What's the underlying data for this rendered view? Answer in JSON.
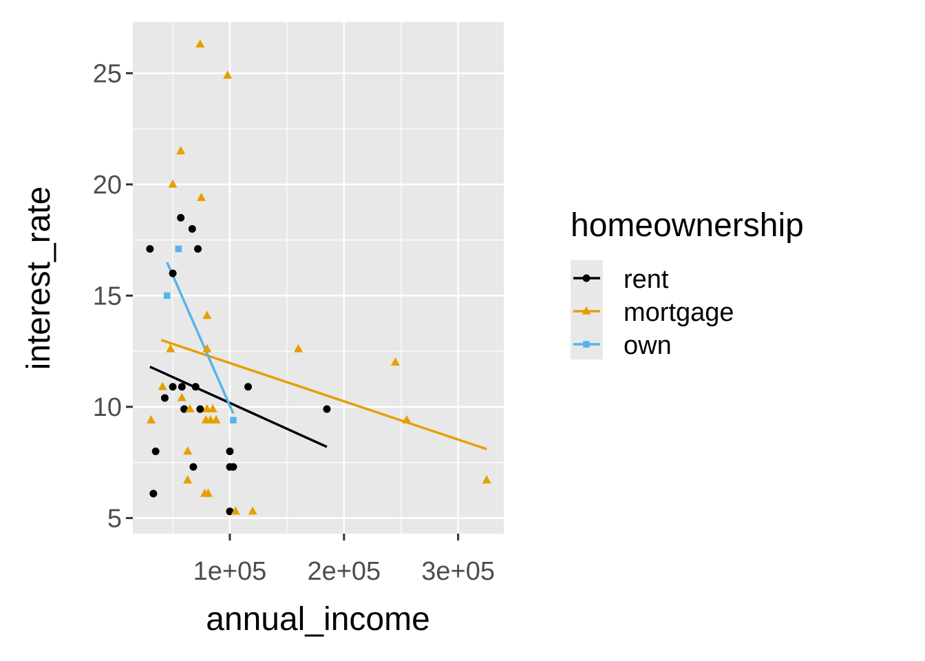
{
  "chart_data": {
    "type": "scatter",
    "xlabel": "annual_income",
    "ylabel": "interest_rate",
    "xlim": [
      15000,
      340000
    ],
    "ylim": [
      4.3,
      27.3
    ],
    "x_ticks": [
      {
        "value": 100000,
        "label": "1e+05"
      },
      {
        "value": 200000,
        "label": "2e+05"
      },
      {
        "value": 300000,
        "label": "3e+05"
      }
    ],
    "y_ticks": [
      {
        "value": 5,
        "label": "5"
      },
      {
        "value": 10,
        "label": "10"
      },
      {
        "value": 15,
        "label": "15"
      },
      {
        "value": 20,
        "label": "20"
      },
      {
        "value": 25,
        "label": "25"
      }
    ],
    "grid": true,
    "legend": {
      "title": "homeownership",
      "position": "right"
    },
    "series": [
      {
        "name": "rent",
        "color": "#000000",
        "marker": "circle",
        "points": [
          [
            30000,
            17.1
          ],
          [
            33000,
            6.1
          ],
          [
            35000,
            8.0
          ],
          [
            43000,
            10.4
          ],
          [
            50000,
            10.9
          ],
          [
            50000,
            16.0
          ],
          [
            57000,
            18.5
          ],
          [
            58000,
            10.9
          ],
          [
            60000,
            9.9
          ],
          [
            67000,
            18.0
          ],
          [
            68000,
            7.3
          ],
          [
            70000,
            10.9
          ],
          [
            72000,
            17.1
          ],
          [
            74000,
            9.9
          ],
          [
            100000,
            5.3
          ],
          [
            100000,
            8.0
          ],
          [
            100000,
            7.3
          ],
          [
            103000,
            7.3
          ],
          [
            116000,
            10.9
          ],
          [
            185000,
            9.9
          ]
        ],
        "trend": [
          [
            30000,
            11.8
          ],
          [
            185000,
            8.2
          ]
        ]
      },
      {
        "name": "mortgage",
        "color": "#e69f00",
        "marker": "triangle",
        "points": [
          [
            31000,
            9.4
          ],
          [
            41000,
            10.9
          ],
          [
            48000,
            12.6
          ],
          [
            50000,
            20.0
          ],
          [
            57000,
            21.5
          ],
          [
            58000,
            10.4
          ],
          [
            63000,
            6.7
          ],
          [
            63000,
            8.0
          ],
          [
            65000,
            9.9
          ],
          [
            74000,
            26.3
          ],
          [
            75000,
            19.4
          ],
          [
            78000,
            6.1
          ],
          [
            79000,
            9.4
          ],
          [
            80000,
            14.1
          ],
          [
            80000,
            12.6
          ],
          [
            80000,
            9.9
          ],
          [
            81000,
            6.1
          ],
          [
            83000,
            9.4
          ],
          [
            85000,
            9.9
          ],
          [
            88000,
            9.4
          ],
          [
            98000,
            24.9
          ],
          [
            105000,
            5.3
          ],
          [
            120000,
            5.3
          ],
          [
            160000,
            12.6
          ],
          [
            245000,
            12.0
          ],
          [
            255000,
            9.4
          ],
          [
            325000,
            6.7
          ]
        ],
        "trend": [
          [
            40000,
            13.0
          ],
          [
            325000,
            8.1
          ]
        ]
      },
      {
        "name": "own",
        "color": "#56b4e9",
        "marker": "square",
        "points": [
          [
            45000,
            15.0
          ],
          [
            55000,
            17.1
          ],
          [
            103000,
            9.4
          ]
        ],
        "trend": [
          [
            45000,
            16.5
          ],
          [
            103000,
            9.7
          ]
        ]
      }
    ]
  }
}
